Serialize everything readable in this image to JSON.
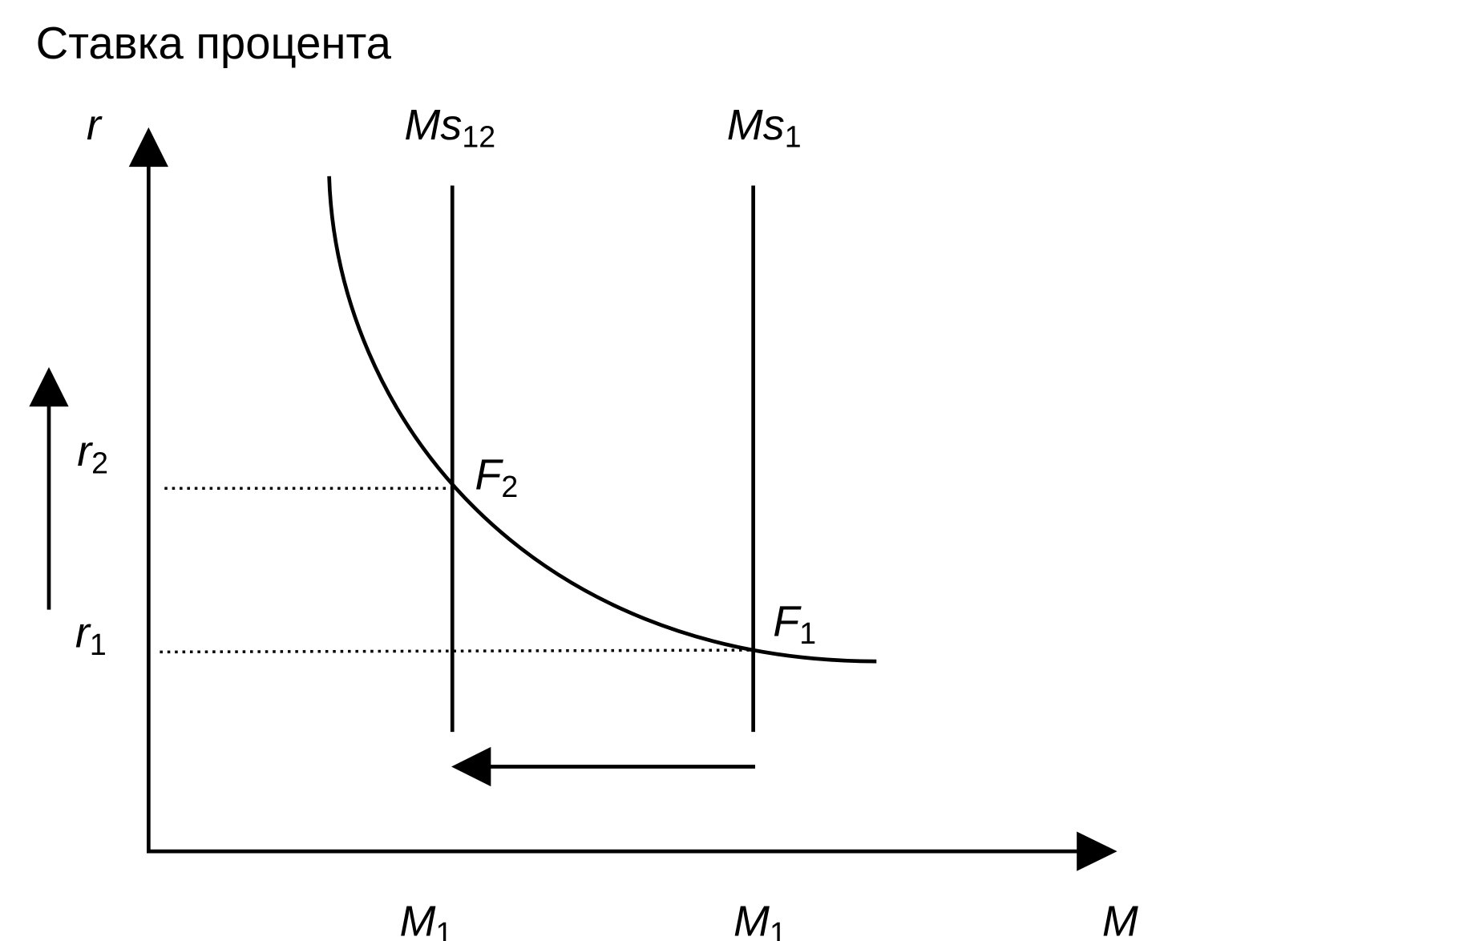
{
  "title": "Ставка процента",
  "axes": {
    "y": "r",
    "x": "M"
  },
  "supply_lines": [
    {
      "label": "Ms",
      "sub": "12"
    },
    {
      "label": "Ms",
      "sub": "1"
    }
  ],
  "points": [
    {
      "label": "F",
      "sub": "2"
    },
    {
      "label": "F",
      "sub": "1"
    }
  ],
  "y_labels": [
    {
      "label": "r",
      "sub": "2"
    },
    {
      "label": "r",
      "sub": "1"
    }
  ],
  "x_labels": [
    {
      "label": "M",
      "sub": "1"
    },
    {
      "label": "M",
      "sub": "1"
    }
  ]
}
